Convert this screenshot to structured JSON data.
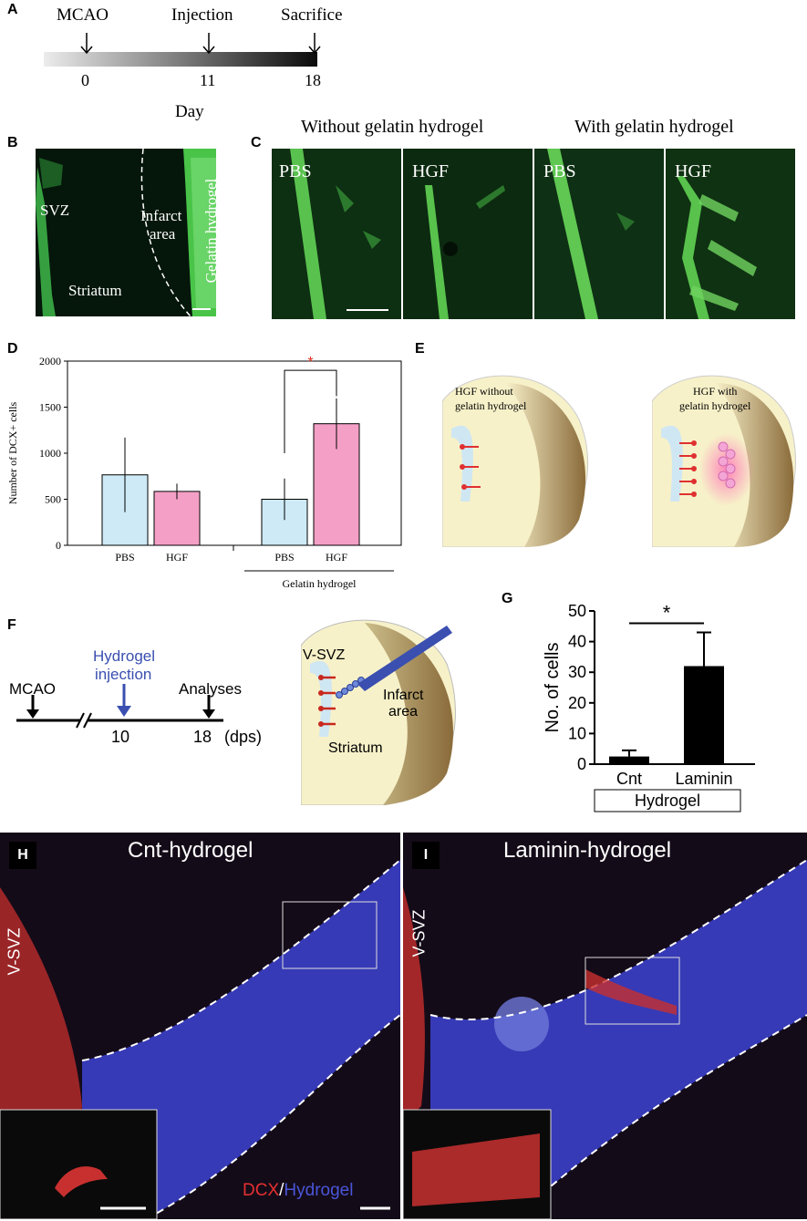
{
  "panel_letters": {
    "A": "A",
    "B": "B",
    "C": "C",
    "D": "D",
    "E": "E",
    "F": "F",
    "G": "G",
    "H": "H",
    "I": "I"
  },
  "panel_a": {
    "events": [
      {
        "label": "MCAO",
        "day": "0"
      },
      {
        "label": "Injection",
        "day": "11"
      },
      {
        "label": "Sacrifice",
        "day": "18"
      }
    ],
    "axis_label": "Day"
  },
  "panel_b": {
    "labels": {
      "svz": "SVZ",
      "infarct_line1": "Infarct",
      "infarct_line2": "area",
      "striatum": "Striatum",
      "gelatin": "Gelatin hydrogel"
    }
  },
  "panel_c": {
    "group_without": "Without gelatin hydrogel",
    "group_with": "With gelatin hydrogel",
    "tiles": [
      "PBS",
      "HGF",
      "PBS",
      "HGF"
    ]
  },
  "panel_e": {
    "left_line1": "HGF without",
    "left_line2": "gelatin hydrogel",
    "right_line1": "HGF with",
    "right_line2": "gelatin hydrogel"
  },
  "panel_f": {
    "timeline": {
      "mcao": "MCAO",
      "injection_line1": "Hydrogel",
      "injection_line2": "injection",
      "analyses": "Analyses",
      "day_injection": "10",
      "day_analyses": "18",
      "unit": "(dps)"
    },
    "diagram": {
      "vsvz": "V-SVZ",
      "infarct_line1": "Infarct",
      "infarct_line2": "area",
      "striatum": "Striatum"
    },
    "colors": {
      "injection": "#3a4fb0"
    }
  },
  "panel_h": {
    "title": "Cnt-hydrogel",
    "side_label": "V-SVZ",
    "legend_dcx": "DCX",
    "legend_sep": "/",
    "legend_hydrogel": "Hydrogel"
  },
  "panel_i": {
    "title": "Laminin-hydrogel",
    "side_label": "V-SVZ"
  },
  "colors": {
    "pbs": "#cdeaf6",
    "hgf": "#f4a0c6",
    "dcx": "#e53030",
    "hydrogel": "#4a55d8",
    "sig_d": "#e0301e"
  },
  "chart_data": [
    {
      "type": "bar",
      "panel": "D",
      "ylabel": "Number of DCX+ cells",
      "ylim": [
        0,
        2000
      ],
      "yticks": [
        "0",
        "500",
        "1000",
        "1500",
        "2000"
      ],
      "group_label": "Gelatin hydrogel",
      "categories": [
        "PBS",
        "HGF",
        "PBS",
        "HGF"
      ],
      "values": [
        765,
        585,
        500,
        1320
      ],
      "errors": [
        405,
        85,
        225,
        275
      ],
      "significance": "*"
    },
    {
      "type": "bar",
      "panel": "G",
      "ylabel": "No. of cells",
      "ylim": [
        0,
        50
      ],
      "yticks": [
        "0",
        "10",
        "20",
        "30",
        "40",
        "50"
      ],
      "categories": [
        "Cnt",
        "Laminin"
      ],
      "group_label": "Hydrogel",
      "values": [
        2.5,
        32
      ],
      "errors": [
        2,
        11
      ],
      "significance": "*"
    }
  ]
}
